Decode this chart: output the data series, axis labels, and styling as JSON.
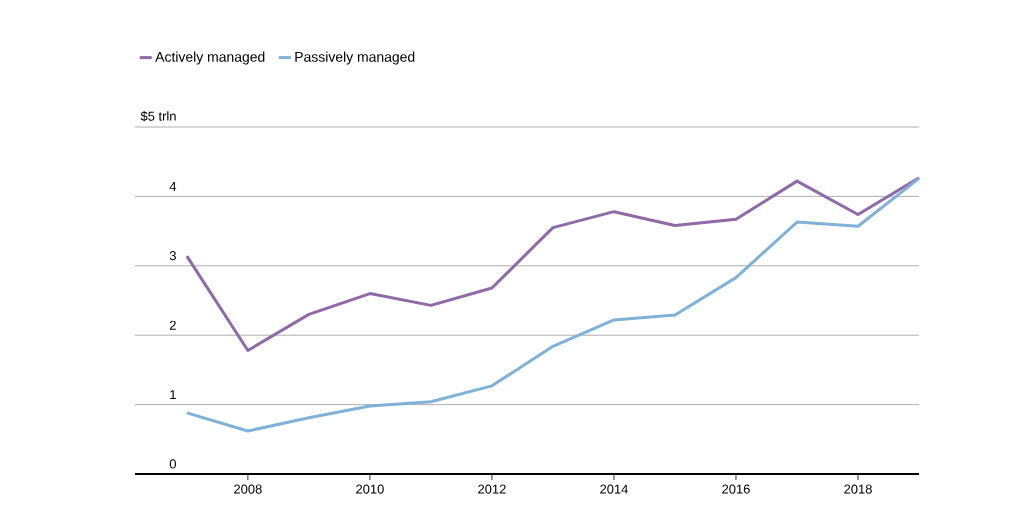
{
  "chart_data": {
    "type": "line",
    "x": [
      2007,
      2008,
      2009,
      2010,
      2011,
      2012,
      2013,
      2014,
      2015,
      2016,
      2017,
      2018,
      2019
    ],
    "series": [
      {
        "name": "Actively managed",
        "color": "#8e6aa8",
        "values": [
          3.14,
          1.78,
          2.3,
          2.6,
          2.43,
          2.68,
          3.55,
          3.78,
          3.58,
          3.67,
          4.22,
          3.74,
          4.27
        ]
      },
      {
        "name": "Passively managed",
        "color": "#7fb1d9",
        "values": [
          0.88,
          0.62,
          0.81,
          0.98,
          1.04,
          1.27,
          1.84,
          2.22,
          2.29,
          2.83,
          3.63,
          3.57,
          4.26
        ]
      }
    ],
    "xlim": [
      2006.15,
      2019
    ],
    "xticks": [
      2008,
      2010,
      2012,
      2014,
      2016,
      2018
    ],
    "ylim": [
      0,
      5
    ],
    "yticks": [
      0,
      1,
      2,
      3,
      4,
      {
        "value": 5,
        "label": "$5 trln"
      }
    ],
    "grid": "y",
    "legend": "top left",
    "marker": "none",
    "line_style": "solid"
  }
}
